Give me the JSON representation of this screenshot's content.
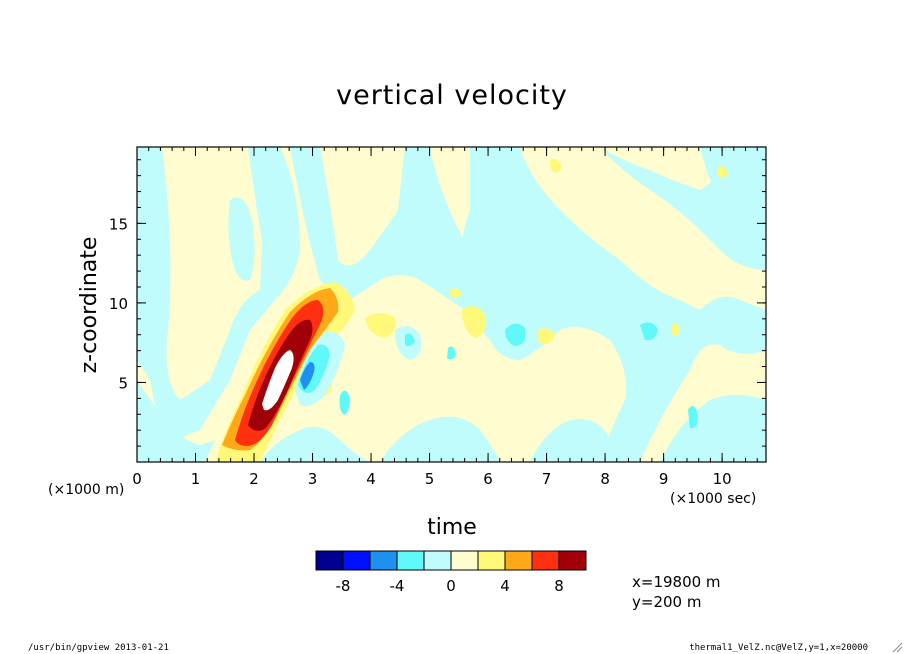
{
  "chart_data": {
    "type": "heatmap",
    "title": "vertical velocity",
    "xlabel": "time",
    "ylabel": "z-coordinate",
    "x_multiplier": "(×1000 sec)",
    "y_multiplier": "(×1000 m)",
    "xlim": [
      0,
      10.75
    ],
    "ylim": [
      0,
      19.8
    ],
    "x_ticks": [
      "0",
      "1",
      "2",
      "3",
      "4",
      "5",
      "6",
      "7",
      "8",
      "9",
      "10"
    ],
    "y_ticks": [
      "5",
      "10",
      "15"
    ],
    "colorbar": {
      "colors": [
        "#000090",
        "#0010ff",
        "#1e90f0",
        "#60f8f8",
        "#c0fcfc",
        "#fffcd0",
        "#fff878",
        "#ffa818",
        "#ff3010",
        "#a00008"
      ],
      "labels": [
        "-8",
        "-4",
        "0",
        "4",
        "8"
      ]
    },
    "cell_colors": {
      "extreme_positive": "#ffffff",
      "background": "#fffcd0"
    },
    "features": [
      {
        "kind": "updraft-core",
        "x": 2.45,
        "z": 4.5,
        "value": 10
      },
      {
        "kind": "downdraft",
        "x": 2.85,
        "z": 5.0,
        "value": -6
      },
      {
        "kind": "downdraft",
        "x": 6.55,
        "z": 8.0,
        "value": -3.5
      },
      {
        "kind": "downdraft",
        "x": 8.95,
        "z": 8.5,
        "value": -3.5
      },
      {
        "kind": "downdraft",
        "x": 9.5,
        "z": 3.0,
        "value": -3.5
      },
      {
        "kind": "updraft",
        "x": 7.0,
        "z": 7.8,
        "value": 2.5
      },
      {
        "kind": "updraft",
        "x": 4.1,
        "z": 8.5,
        "value": 2.5
      },
      {
        "kind": "updraft",
        "x": 5.8,
        "z": 9.0,
        "value": 2.5
      }
    ]
  },
  "annotations": {
    "slice_x": "x=19800 m",
    "slice_y": "y=200 m",
    "footer_left": "/usr/bin/gpview  2013-01-21",
    "footer_right": "thermal1_VelZ.nc@VelZ,y=1,x=20000"
  }
}
